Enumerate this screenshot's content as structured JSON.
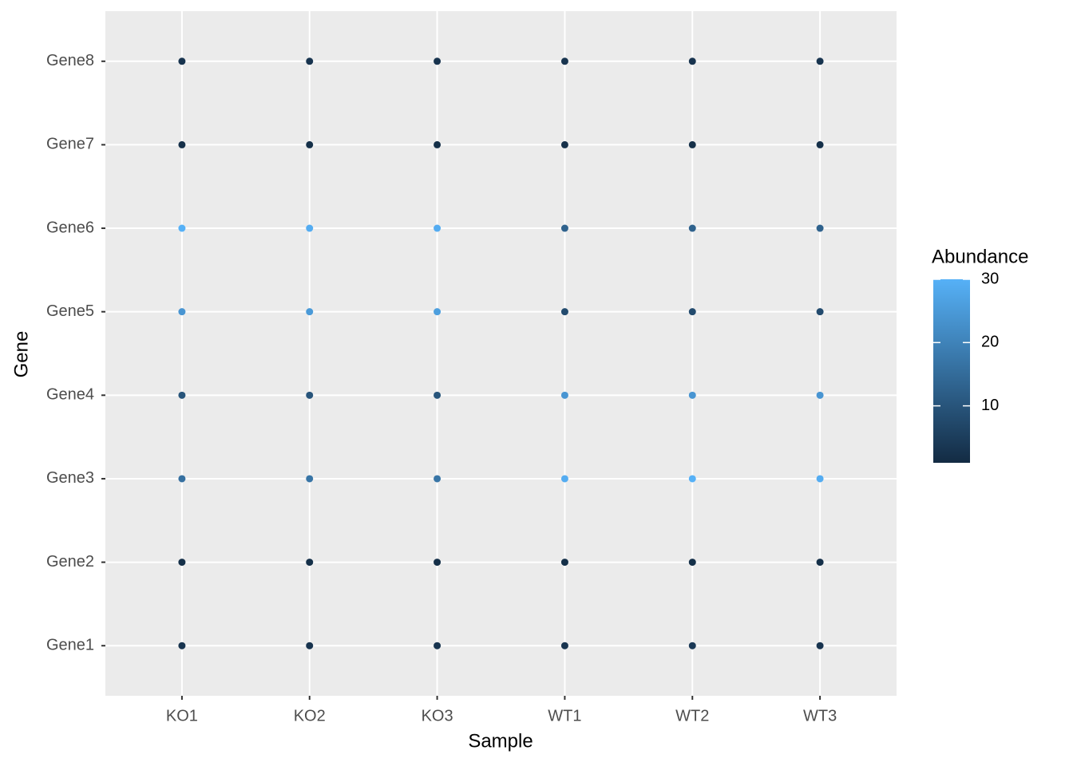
{
  "chart_data": {
    "type": "scatter",
    "x_label": "Sample",
    "y_label": "Gene",
    "categories": [
      "KO1",
      "KO2",
      "KO3",
      "WT1",
      "WT2",
      "WT3"
    ],
    "rows": [
      "Gene1",
      "Gene2",
      "Gene3",
      "Gene4",
      "Gene5",
      "Gene6",
      "Gene7",
      "Gene8"
    ],
    "values": [
      [
        3,
        3,
        3,
        3,
        4,
        3
      ],
      [
        2,
        2,
        2,
        2,
        2,
        2
      ],
      [
        16,
        17,
        17,
        29,
        30,
        29
      ],
      [
        10,
        10,
        10,
        24,
        24,
        24
      ],
      [
        24,
        25,
        26,
        8,
        8,
        8
      ],
      [
        30,
        29,
        29,
        13,
        13,
        13
      ],
      [
        2,
        2,
        2,
        2,
        2,
        2
      ],
      [
        3,
        3,
        3,
        3,
        3,
        3
      ]
    ],
    "legend_title": "Abundance",
    "color_low": "#132B43",
    "color_high": "#56B1F7",
    "clim": [
      1,
      30
    ],
    "cticks": [
      10,
      20,
      30
    ],
    "grid": true
  }
}
